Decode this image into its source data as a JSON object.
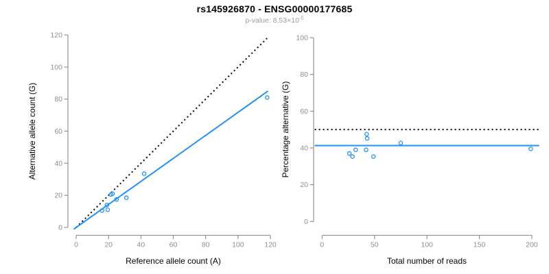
{
  "header": {
    "title": "rs145926870 - ENSG00000177685",
    "subtitle_prefix": "p-value: 8.53×10",
    "subtitle_exponent": "-5"
  },
  "colors": {
    "accent_blue": "#1E90FF",
    "axis_gray": "#8a8a8a",
    "tick_text_gray": "#8e8e8e",
    "label_black": "#000000",
    "subtitle_gray": "#9b9b9b"
  },
  "chart_data": [
    {
      "type": "scatter",
      "name": "allele-count-scatter",
      "xlabel": "Reference allele count (A)",
      "ylabel": "Alternative allele count (G)",
      "xlim": [
        0,
        120
      ],
      "ylim": [
        0,
        120
      ],
      "xticks": [
        0,
        20,
        40,
        60,
        80,
        100,
        120
      ],
      "yticks": [
        0,
        20,
        40,
        60,
        80,
        100,
        120
      ],
      "grid": false,
      "legend": "none",
      "point_color": "#1E90FF",
      "points": [
        [
          16,
          10.5
        ],
        [
          19,
          14
        ],
        [
          19.5,
          11
        ],
        [
          21.5,
          20.5
        ],
        [
          22.5,
          21
        ],
        [
          25,
          17.5
        ],
        [
          31,
          18.5
        ],
        [
          42,
          33.5
        ],
        [
          118,
          81
        ]
      ],
      "lines": [
        {
          "name": "identity-line",
          "style": "dotted",
          "color": "#000000",
          "x1": 0,
          "y1": 0,
          "x2": 118.5,
          "y2": 118.5
        },
        {
          "name": "fit-line",
          "style": "solid",
          "color": "#1E90FF",
          "x1": -1.5,
          "y1": -1.1,
          "x2": 118.5,
          "y2": 85
        }
      ]
    },
    {
      "type": "scatter",
      "name": "percentage-vs-reads-scatter",
      "xlabel": "Total number of reads",
      "ylabel": "Percentage alternative (G)",
      "xlim": [
        0,
        200
      ],
      "ylim": [
        0,
        100
      ],
      "xticks": [
        0,
        50,
        100,
        150,
        200
      ],
      "yticks": [
        0,
        20,
        40,
        60,
        80,
        100
      ],
      "grid": false,
      "legend": "none",
      "point_color": "#1E90FF",
      "points": [
        [
          26,
          37
        ],
        [
          29,
          35.3
        ],
        [
          32,
          39
        ],
        [
          42,
          39
        ],
        [
          42.5,
          47.5
        ],
        [
          43,
          45.2
        ],
        [
          49,
          35.3
        ],
        [
          75,
          42.7
        ],
        [
          199,
          39.5
        ]
      ],
      "lines": [
        {
          "name": "fifty-percent-line",
          "style": "dotted",
          "color": "#000000",
          "x1": -7,
          "y1": 50,
          "x2": 207,
          "y2": 50
        },
        {
          "name": "mean-percentage-line",
          "style": "solid",
          "color": "#1E90FF",
          "x1": -7,
          "y1": 41.3,
          "x2": 207,
          "y2": 41.3
        }
      ]
    }
  ]
}
